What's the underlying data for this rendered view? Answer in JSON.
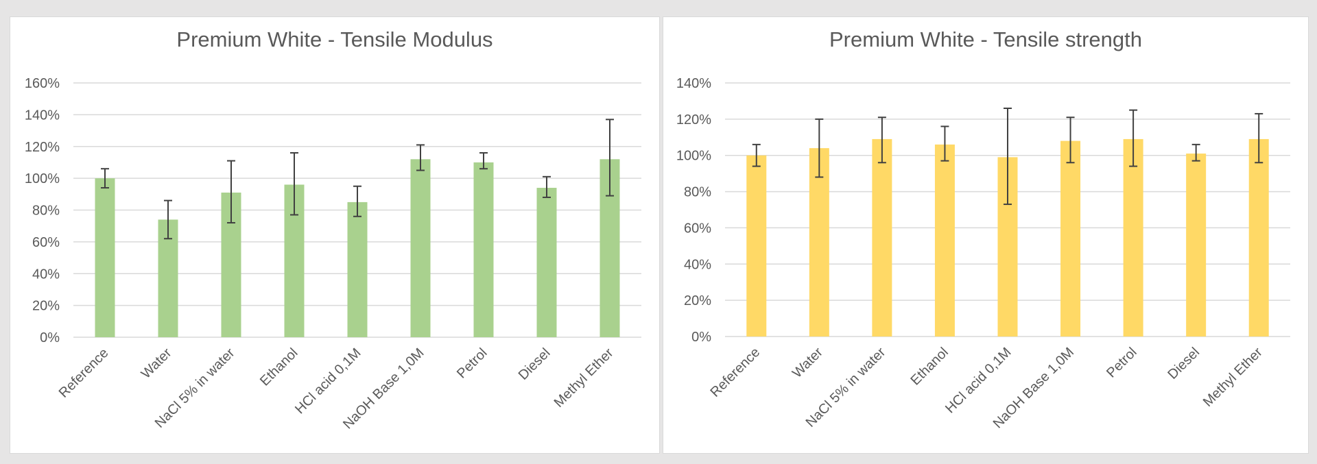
{
  "colors": {
    "background": "#e6e5e5",
    "panel": "#ffffff",
    "text": "#595959",
    "gridline": "#d9d9d9",
    "error_bar": "#404040"
  },
  "chart_data": [
    {
      "type": "bar",
      "title": "Premium White - Tensile Modulus",
      "categories": [
        "Reference",
        "Water",
        "NaCl 5% in water",
        "Ethanol",
        "HCl acid 0,1M",
        "NaOH Base 1,0M",
        "Petrol",
        "Diesel",
        "Methyl Ether"
      ],
      "values": [
        100,
        74,
        91,
        96,
        85,
        112,
        110,
        94,
        112
      ],
      "error_low": [
        94,
        62,
        72,
        77,
        76,
        105,
        106,
        88,
        89
      ],
      "error_high": [
        106,
        86,
        111,
        116,
        95,
        121,
        116,
        101,
        137
      ],
      "value_unit": "%",
      "ylim": [
        0,
        160
      ],
      "yticks": [
        "0%",
        "20%",
        "40%",
        "60%",
        "80%",
        "100%",
        "120%",
        "140%",
        "160%"
      ],
      "grid": true,
      "legend": "none",
      "bar_color": "#a9d18e"
    },
    {
      "type": "bar",
      "title": "Premium White - Tensile strength",
      "categories": [
        "Reference",
        "Water",
        "NaCl 5% in water",
        "Ethanol",
        "HCl acid 0,1M",
        "NaOH Base 1,0M",
        "Petrol",
        "Diesel",
        "Methyl Ether"
      ],
      "values": [
        100,
        104,
        109,
        106,
        99,
        108,
        109,
        101,
        109
      ],
      "error_low": [
        94,
        88,
        96,
        97,
        73,
        96,
        94,
        97,
        96
      ],
      "error_high": [
        106,
        120,
        121,
        116,
        126,
        121,
        125,
        106,
        123
      ],
      "value_unit": "%",
      "ylim": [
        0,
        140
      ],
      "yticks": [
        "0%",
        "20%",
        "40%",
        "60%",
        "80%",
        "100%",
        "120%",
        "140%"
      ],
      "grid": true,
      "legend": "none",
      "bar_color": "#ffd966"
    }
  ]
}
